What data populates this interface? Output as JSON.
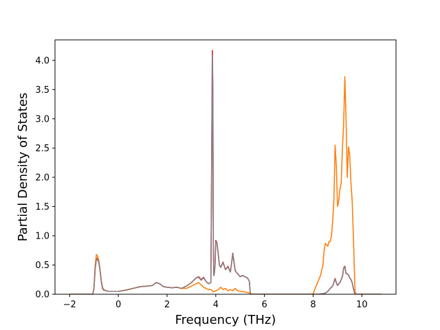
{
  "chart_data": {
    "type": "line",
    "title": "",
    "xlabel": "Frequency (THz)",
    "ylabel": "Partial Density of States",
    "xlim": [
      -2.6,
      11.4
    ],
    "ylim": [
      0.0,
      4.35
    ],
    "xticks": [
      -2,
      0,
      2,
      4,
      6,
      8,
      10
    ],
    "xtick_labels": [
      "−2",
      "0",
      "2",
      "4",
      "6",
      "8",
      "10"
    ],
    "yticks": [
      0.0,
      0.5,
      1.0,
      1.5,
      2.0,
      2.5,
      3.0,
      3.5,
      4.0
    ],
    "ytick_labels": [
      "0.0",
      "0.5",
      "1.0",
      "1.5",
      "2.0",
      "2.5",
      "3.0",
      "3.5",
      "4.0"
    ],
    "grid": false,
    "legend": "none",
    "series": [
      {
        "color": "#d62728",
        "x": [
          -2.0,
          -1.05,
          -1.0,
          -0.95,
          -0.9,
          -0.85,
          -0.8,
          -0.75,
          -0.7,
          -0.65,
          -0.6,
          -0.5,
          -0.4,
          -0.2,
          0.0,
          0.3,
          0.6,
          0.9,
          1.2,
          1.4,
          1.55,
          1.7,
          1.85,
          2.0,
          2.2,
          2.4,
          2.6,
          2.8,
          3.0,
          3.1,
          3.2,
          3.3,
          3.4,
          3.5,
          3.6,
          3.7,
          3.8,
          3.86,
          3.88,
          3.9,
          3.92,
          3.94,
          3.97,
          4.0,
          4.05,
          4.1,
          4.15,
          4.2,
          4.3,
          4.4,
          4.5,
          4.6,
          4.7,
          4.75,
          4.8,
          4.9,
          5.0,
          5.1,
          5.2,
          5.3,
          5.38,
          5.42,
          5.5,
          7.9,
          8.0,
          8.2,
          8.4,
          8.5,
          8.6,
          8.7,
          8.8,
          8.9,
          8.95,
          9.0,
          9.05,
          9.1,
          9.2,
          9.25,
          9.3,
          9.35,
          9.4,
          9.45,
          9.5,
          9.55,
          9.6,
          9.65,
          9.7,
          9.75,
          10.0,
          10.8
        ],
        "y": [
          0.0,
          0.0,
          0.1,
          0.45,
          0.62,
          0.6,
          0.55,
          0.4,
          0.22,
          0.1,
          0.07,
          0.06,
          0.05,
          0.05,
          0.05,
          0.07,
          0.1,
          0.13,
          0.14,
          0.15,
          0.2,
          0.18,
          0.13,
          0.12,
          0.11,
          0.12,
          0.1,
          0.14,
          0.2,
          0.24,
          0.28,
          0.3,
          0.25,
          0.29,
          0.22,
          0.18,
          0.2,
          4.17,
          3.5,
          0.8,
          0.32,
          0.35,
          0.5,
          0.92,
          0.88,
          0.7,
          0.5,
          0.46,
          0.55,
          0.42,
          0.48,
          0.38,
          0.7,
          0.55,
          0.4,
          0.35,
          0.3,
          0.32,
          0.3,
          0.28,
          0.22,
          0.0,
          0.0,
          0.0,
          0.0,
          0.0,
          0.01,
          0.02,
          0.05,
          0.1,
          0.14,
          0.27,
          0.2,
          0.15,
          0.18,
          0.2,
          0.3,
          0.45,
          0.48,
          0.35,
          0.35,
          0.33,
          0.28,
          0.25,
          0.2,
          0.1,
          0.02,
          0.0,
          0.0,
          0.0
        ]
      },
      {
        "color": "#ff7f0e",
        "x": [
          -2.0,
          -1.05,
          -1.0,
          -0.95,
          -0.9,
          -0.85,
          -0.8,
          -0.75,
          -0.7,
          -0.65,
          -0.6,
          -0.5,
          -0.4,
          -0.2,
          0.0,
          0.3,
          0.6,
          0.9,
          1.2,
          1.4,
          1.55,
          1.7,
          1.85,
          2.0,
          2.2,
          2.4,
          2.6,
          2.8,
          3.0,
          3.2,
          3.3,
          3.4,
          3.5,
          3.6,
          3.7,
          3.8,
          3.86,
          3.88,
          3.9,
          3.95,
          4.0,
          4.1,
          4.2,
          4.3,
          4.4,
          4.5,
          4.6,
          4.7,
          4.8,
          4.9,
          5.0,
          5.2,
          5.4,
          5.5,
          7.9,
          8.0,
          8.1,
          8.2,
          8.3,
          8.4,
          8.45,
          8.5,
          8.55,
          8.6,
          8.65,
          8.7,
          8.75,
          8.8,
          8.85,
          8.9,
          8.95,
          9.0,
          9.05,
          9.1,
          9.15,
          9.2,
          9.25,
          9.3,
          9.35,
          9.4,
          9.45,
          9.5,
          9.55,
          9.6,
          9.65,
          9.7,
          9.72,
          9.75,
          10.0,
          10.8
        ],
        "y": [
          0.0,
          0.0,
          0.12,
          0.5,
          0.68,
          0.65,
          0.58,
          0.42,
          0.24,
          0.12,
          0.08,
          0.06,
          0.05,
          0.05,
          0.05,
          0.07,
          0.1,
          0.13,
          0.14,
          0.15,
          0.2,
          0.18,
          0.13,
          0.12,
          0.11,
          0.12,
          0.1,
          0.1,
          0.14,
          0.18,
          0.2,
          0.16,
          0.12,
          0.1,
          0.08,
          0.08,
          0.06,
          0.05,
          0.04,
          0.05,
          0.06,
          0.08,
          0.12,
          0.08,
          0.1,
          0.06,
          0.08,
          0.06,
          0.1,
          0.06,
          0.05,
          0.04,
          0.02,
          0.0,
          0.0,
          0.01,
          0.12,
          0.22,
          0.32,
          0.5,
          0.75,
          0.87,
          0.85,
          0.82,
          0.9,
          0.9,
          1.0,
          1.25,
          1.6,
          2.55,
          2.2,
          1.5,
          1.6,
          1.8,
          1.9,
          2.5,
          2.9,
          3.72,
          3.0,
          2.0,
          2.52,
          2.38,
          1.9,
          1.6,
          1.0,
          0.3,
          0.05,
          0.0,
          0.0,
          0.0
        ]
      },
      {
        "color": "#8c7a7e",
        "x": [
          -2.0,
          -1.05,
          -1.0,
          -0.95,
          -0.9,
          -0.85,
          -0.8,
          -0.75,
          -0.7,
          -0.65,
          -0.6,
          -0.5,
          -0.4,
          -0.2,
          0.0,
          0.3,
          0.6,
          0.9,
          1.2,
          1.4,
          1.55,
          1.7,
          1.85,
          2.0,
          2.2,
          2.4,
          2.6,
          2.8,
          3.0,
          3.1,
          3.2,
          3.3,
          3.4,
          3.5,
          3.6,
          3.7,
          3.8,
          3.86,
          3.88,
          3.9,
          3.92,
          3.94,
          3.97,
          4.0,
          4.05,
          4.1,
          4.15,
          4.2,
          4.3,
          4.4,
          4.5,
          4.6,
          4.7,
          4.75,
          4.8,
          4.9,
          5.0,
          5.1,
          5.2,
          5.3,
          5.38,
          5.42,
          5.5,
          7.9,
          8.0,
          8.2,
          8.4,
          8.5,
          8.6,
          8.7,
          8.8,
          8.9,
          8.95,
          9.0,
          9.05,
          9.1,
          9.2,
          9.25,
          9.3,
          9.35,
          9.4,
          9.45,
          9.5,
          9.55,
          9.6,
          9.65,
          9.7,
          9.75,
          10.0,
          10.8
        ],
        "y": [
          0.0,
          0.0,
          0.1,
          0.44,
          0.6,
          0.59,
          0.54,
          0.4,
          0.22,
          0.1,
          0.07,
          0.06,
          0.05,
          0.05,
          0.05,
          0.07,
          0.1,
          0.13,
          0.14,
          0.15,
          0.2,
          0.18,
          0.13,
          0.12,
          0.11,
          0.12,
          0.1,
          0.14,
          0.2,
          0.24,
          0.28,
          0.29,
          0.24,
          0.28,
          0.22,
          0.18,
          0.2,
          4.08,
          3.45,
          0.8,
          0.32,
          0.35,
          0.5,
          0.9,
          0.87,
          0.7,
          0.5,
          0.46,
          0.54,
          0.42,
          0.47,
          0.38,
          0.68,
          0.54,
          0.4,
          0.35,
          0.3,
          0.32,
          0.3,
          0.28,
          0.22,
          0.0,
          0.0,
          0.0,
          0.0,
          0.0,
          0.01,
          0.02,
          0.05,
          0.1,
          0.14,
          0.26,
          0.2,
          0.15,
          0.18,
          0.2,
          0.3,
          0.44,
          0.47,
          0.35,
          0.35,
          0.33,
          0.28,
          0.25,
          0.2,
          0.1,
          0.02,
          0.0,
          0.0,
          0.0
        ]
      }
    ]
  }
}
